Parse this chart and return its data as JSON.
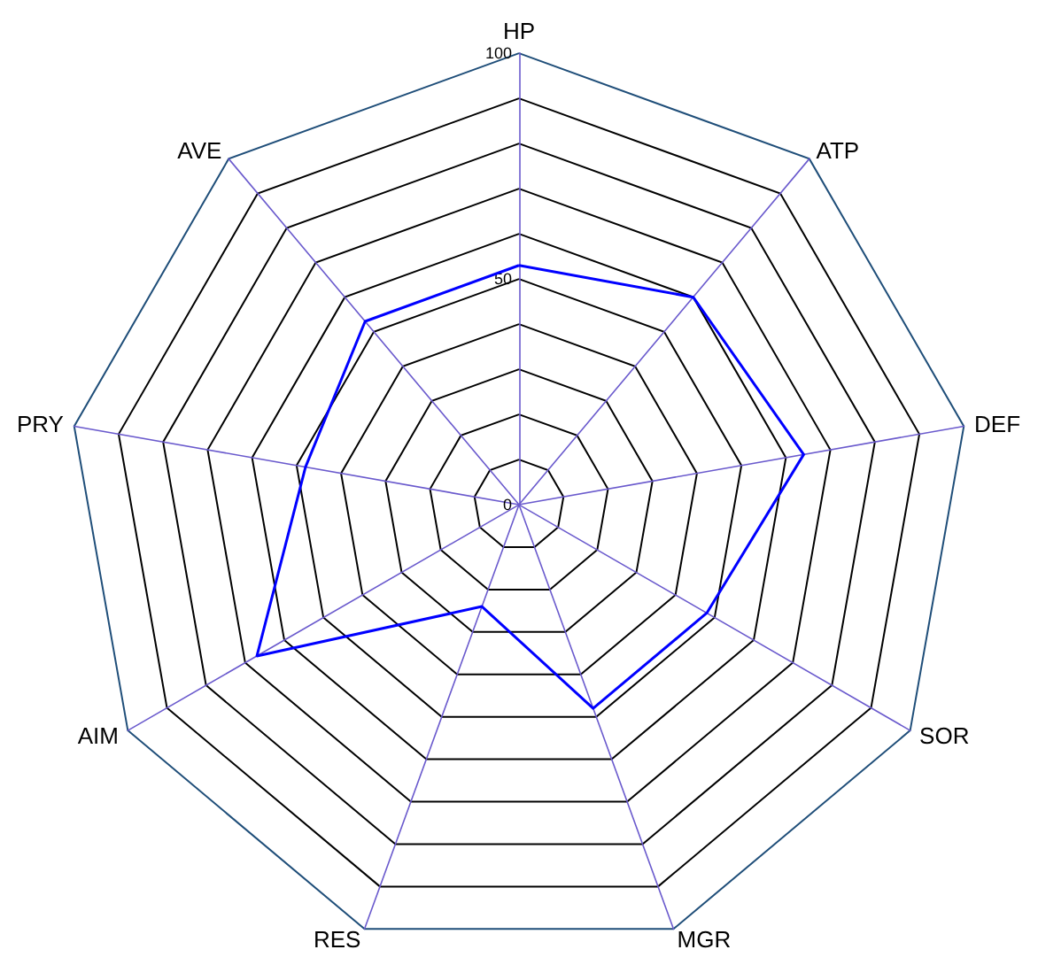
{
  "chart_data": {
    "type": "radar",
    "categories": [
      "HP",
      "ATP",
      "DEF",
      "SOR",
      "MGR",
      "RES",
      "AIM",
      "PRY",
      "AVE"
    ],
    "series": [
      {
        "color": "#0000ff",
        "values": [
          53,
          60,
          64,
          48,
          48,
          24,
          67,
          48,
          53
        ]
      }
    ],
    "ylim": [
      0,
      100
    ],
    "yticks": [
      0,
      50,
      100
    ],
    "grid": true,
    "marker": "none"
  }
}
